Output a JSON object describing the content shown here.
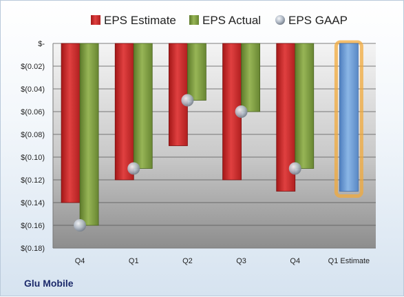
{
  "footer": {
    "company": "Glu Mobile"
  },
  "colors": {
    "estimate": "#cc2b2b",
    "actual": "#7d9b3c",
    "gaap": "#a9b2bf",
    "estimate_highlight": "#6f9fd6",
    "highlight_glow": "#f2a93b"
  },
  "chart_data": {
    "type": "bar",
    "title": "",
    "xlabel": "",
    "ylabel": "",
    "categories": [
      "Q4",
      "Q1",
      "Q2",
      "Q3",
      "Q4",
      "Q1 Estimate"
    ],
    "series": [
      {
        "name": "EPS Estimate",
        "values": [
          -0.14,
          -0.12,
          -0.09,
          -0.12,
          -0.13,
          -0.13
        ]
      },
      {
        "name": "EPS Actual",
        "values": [
          -0.16,
          -0.11,
          -0.05,
          -0.06,
          -0.11,
          null
        ]
      },
      {
        "name": "EPS GAAP",
        "type": "scatter",
        "values": [
          -0.16,
          -0.11,
          -0.05,
          -0.06,
          -0.11,
          null
        ]
      }
    ],
    "ylim": [
      -0.18,
      0
    ],
    "yticks": [
      0,
      -0.02,
      -0.04,
      -0.06,
      -0.08,
      -0.1,
      -0.12,
      -0.14,
      -0.16,
      -0.18
    ],
    "ytick_labels": [
      "$-",
      "$(0.02)",
      "$(0.04)",
      "$(0.06)",
      "$(0.08)",
      "$(0.10)",
      "$(0.12)",
      "$(0.14)",
      "$(0.16)",
      "$(0.18)"
    ],
    "grid": true,
    "legend_position": "top"
  }
}
